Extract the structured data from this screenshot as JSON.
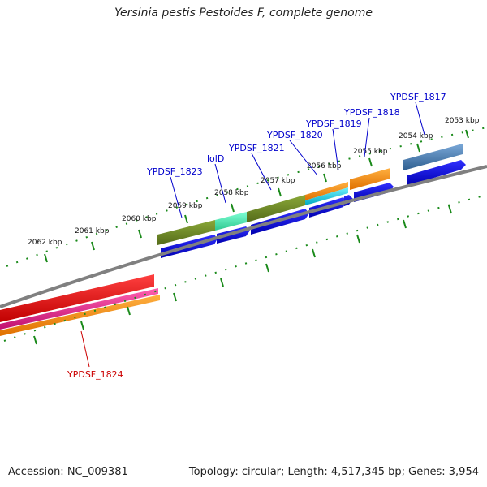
{
  "title": "Yersinia pestis Pestoides F, complete genome",
  "footer": {
    "accession": "Accession: NC_009381",
    "summary": "Topology: circular; Length: 4,517,345 bp; Genes: 3,954"
  },
  "kbp_labels": [
    "2053 kbp",
    "2054 kbp",
    "2055 kbp",
    "2056 kbp",
    "2057 kbp",
    "2058 kbp",
    "2059 kbp",
    "2060 kbp",
    "2061 kbp",
    "2062 kbp"
  ],
  "gene_labels": [
    {
      "text": "YPDSF_1817",
      "color": "#0000cc"
    },
    {
      "text": "YPDSF_1818",
      "color": "#0000cc"
    },
    {
      "text": "YPDSF_1819",
      "color": "#0000cc"
    },
    {
      "text": "YPDSF_1820",
      "color": "#0000cc"
    },
    {
      "text": "YPDSF_1821",
      "color": "#0000cc"
    },
    {
      "text": "lolD",
      "color": "#0000cc"
    },
    {
      "text": "YPDSF_1823",
      "color": "#0000cc"
    },
    {
      "text": "YPDSF_1824",
      "color": "#cc0000"
    }
  ],
  "colors": {
    "backbone": "#808080",
    "tick": "#1a8a1a",
    "cds": "#0000ee",
    "olive": "#6b8e23",
    "aquamarine": "#40e0a0",
    "orange": "#ff8c00",
    "cyan": "#00c8d8",
    "steelblue": "#4682b4",
    "red": "#ee0000",
    "magenta": "#e0208a"
  }
}
